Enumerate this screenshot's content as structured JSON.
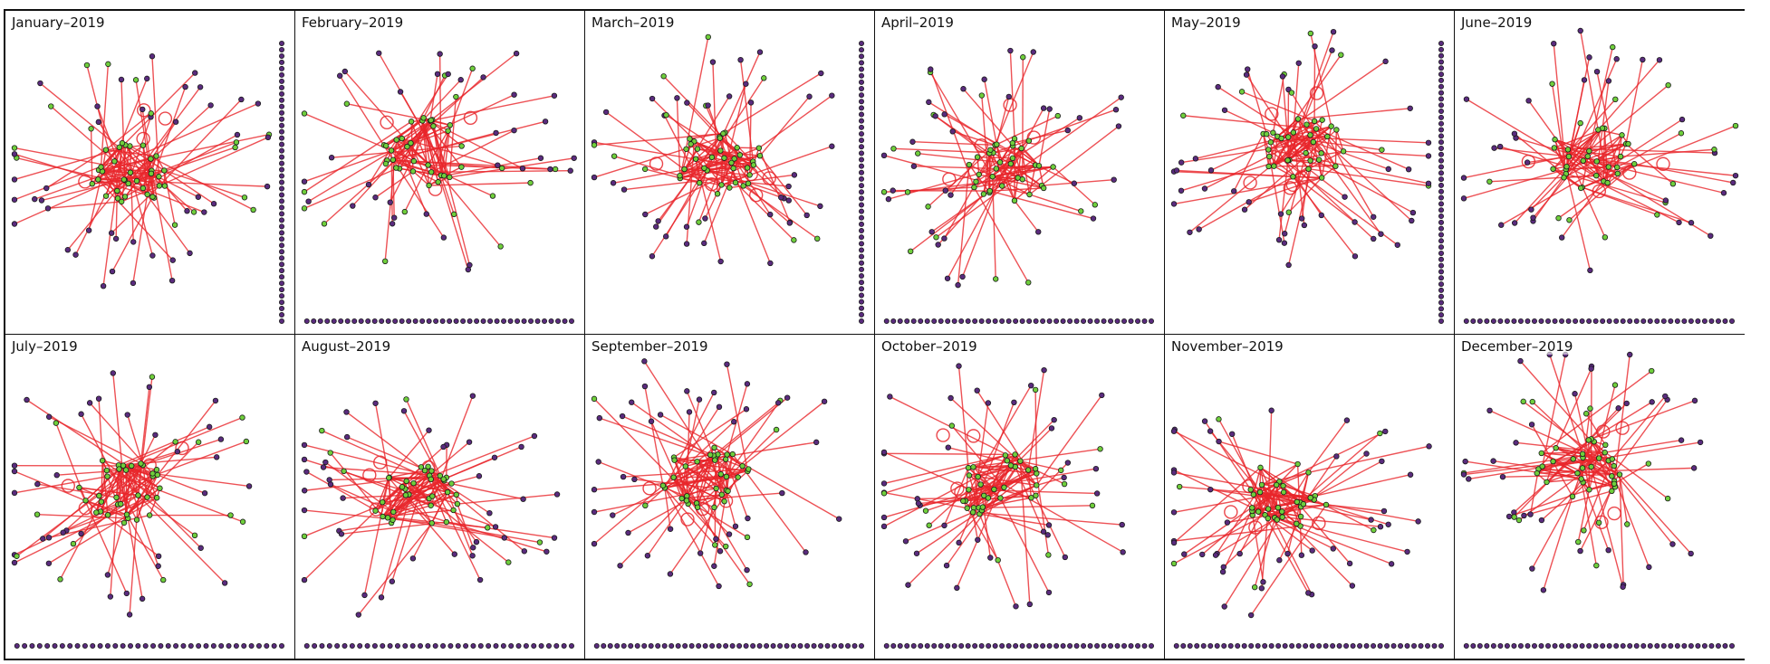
{
  "figure": {
    "description_kind": "monthly network graph small multiples",
    "colors": {
      "edge": "#e8262b",
      "node_active": "#6fcf3c",
      "node_inactive": "#5a2b7e",
      "node_outline": "#1a1a1a",
      "border": "#111111"
    },
    "panels": [
      {
        "title": "January–2019",
        "active_nodes": 34,
        "peripheral_nodes": 58,
        "isolates": 45,
        "isolate_layout": "vertical-right",
        "loops": 4
      },
      {
        "title": "February–2019",
        "active_nodes": 32,
        "peripheral_nodes": 50,
        "isolates": 40,
        "isolate_layout": "horizontal-bottom",
        "loops": 3
      },
      {
        "title": "March–2019",
        "active_nodes": 36,
        "peripheral_nodes": 52,
        "isolates": 44,
        "isolate_layout": "vertical-right",
        "loops": 5
      },
      {
        "title": "April–2019",
        "active_nodes": 33,
        "peripheral_nodes": 50,
        "isolates": 40,
        "isolate_layout": "horizontal-bottom",
        "loops": 4
      },
      {
        "title": "May–2019",
        "active_nodes": 34,
        "peripheral_nodes": 56,
        "isolates": 46,
        "isolate_layout": "vertical-right",
        "loops": 6
      },
      {
        "title": "June–2019",
        "active_nodes": 30,
        "peripheral_nodes": 48,
        "isolates": 40,
        "isolate_layout": "horizontal-bottom",
        "loops": 4
      },
      {
        "title": "July–2019",
        "active_nodes": 33,
        "peripheral_nodes": 52,
        "isolates": 36,
        "isolate_layout": "horizontal-bottom",
        "loops": 5
      },
      {
        "title": "August–2019",
        "active_nodes": 35,
        "peripheral_nodes": 52,
        "isolates": 36,
        "isolate_layout": "horizontal-bottom",
        "loops": 4
      },
      {
        "title": "September–2019",
        "active_nodes": 34,
        "peripheral_nodes": 52,
        "isolates": 40,
        "isolate_layout": "horizontal-bottom",
        "loops": 4
      },
      {
        "title": "October–2019",
        "active_nodes": 32,
        "peripheral_nodes": 54,
        "isolates": 40,
        "isolate_layout": "horizontal-bottom",
        "loops": 4
      },
      {
        "title": "November–2019",
        "active_nodes": 34,
        "peripheral_nodes": 54,
        "isolates": 40,
        "isolate_layout": "horizontal-bottom",
        "loops": 4
      },
      {
        "title": "December–2019",
        "active_nodes": 32,
        "peripheral_nodes": 54,
        "isolates": 40,
        "isolate_layout": "horizontal-bottom",
        "loops": 4
      }
    ]
  }
}
